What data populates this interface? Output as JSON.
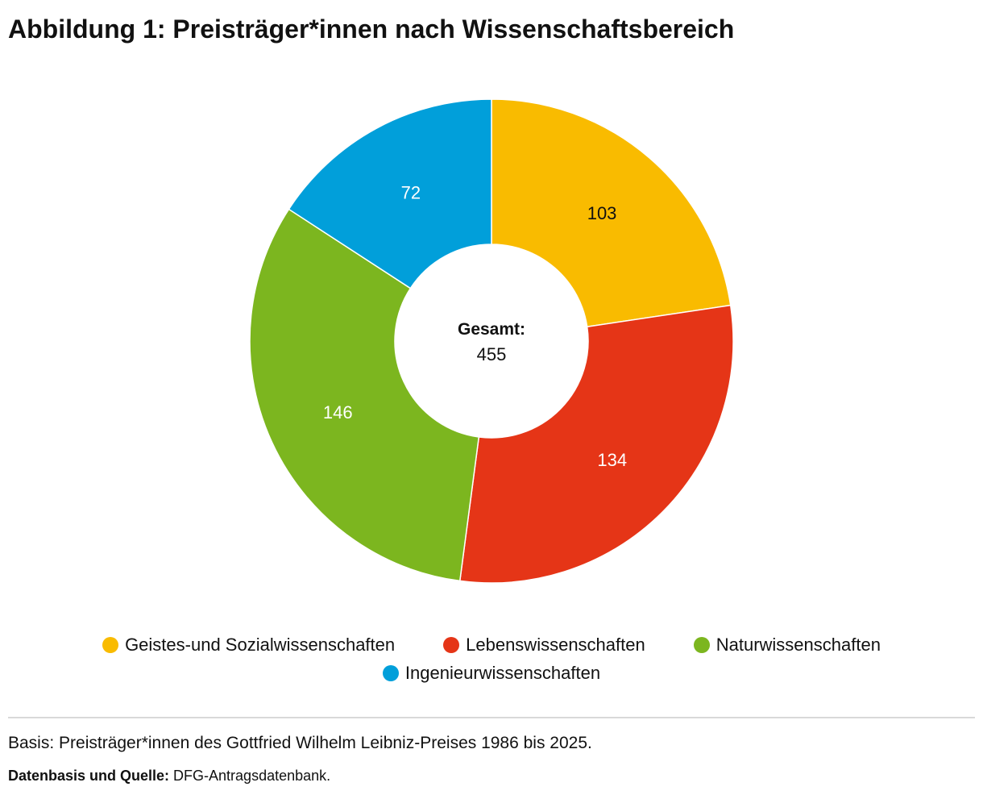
{
  "title": "Abbildung 1: Preisträger*innen nach Wissenschaftsbereich",
  "chart_data": {
    "type": "pie",
    "variant": "donut",
    "categories": [
      "Geistes-und Sozialwissenschaften",
      "Lebenswissenschaften",
      "Naturwissenschaften",
      "Ingenieurwissenschaften"
    ],
    "values": [
      103,
      134,
      146,
      72
    ],
    "colors": [
      "#f9bb00",
      "#e53517",
      "#7cb61f",
      "#019fda"
    ],
    "label_colors": [
      "#111111",
      "#ffffff",
      "#ffffff",
      "#ffffff"
    ],
    "center_label": "Gesamt:",
    "center_value": "455",
    "legend_position": "bottom"
  },
  "footer": {
    "note": "Basis: Preisträger*innen des Gottfried Wilhelm Leibniz-Preises 1986 bis 2025.",
    "source_label": "Datenbasis und Quelle:",
    "source_text": " DFG-Antragsdatenbank."
  }
}
